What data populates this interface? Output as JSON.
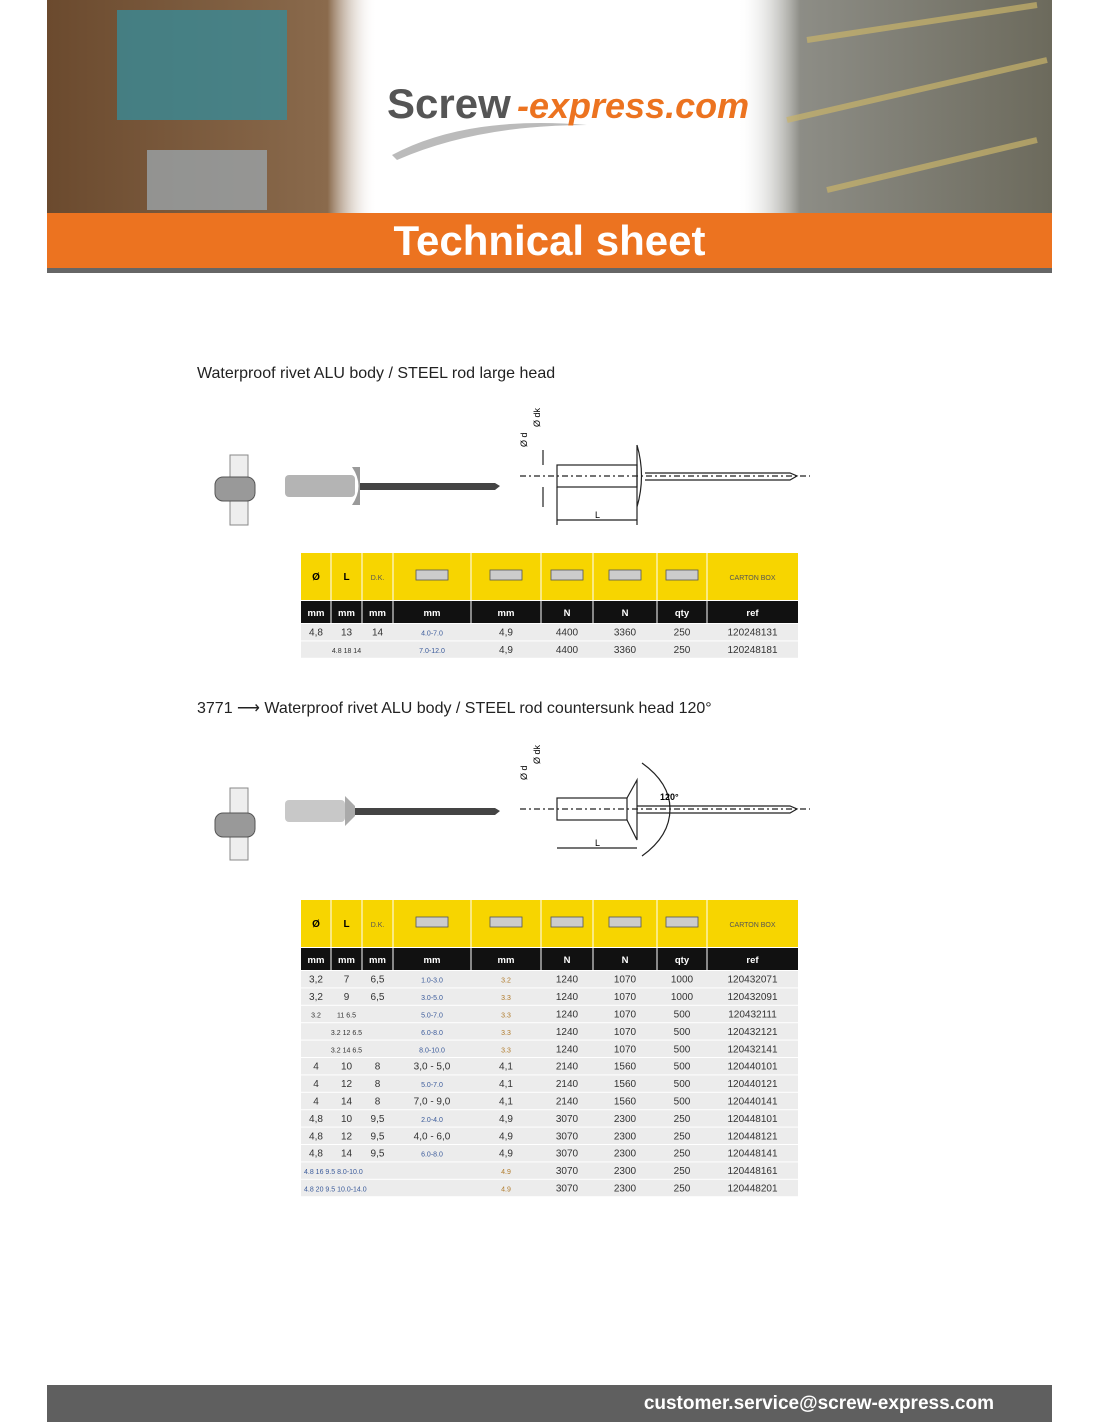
{
  "header": {
    "logo_main": "Screw",
    "logo_rest": "-express.com",
    "banner": "Technical sheet"
  },
  "sections": [
    {
      "title": "Waterproof rivet ALU body / STEEL rod large head",
      "diagram": {
        "d": "Ø d",
        "dk": "Ø dk",
        "length": "L"
      },
      "table": {
        "header": [
          "Ø",
          "L",
          "D.K.",
          "CARTON BOX"
        ],
        "units": [
          "mm",
          "mm",
          "mm",
          "mm",
          "mm",
          "N",
          "N",
          "qty",
          "ref"
        ],
        "rows": [
          [
            "4,8",
            "13",
            "14",
            "4.0-7.0",
            "4,9",
            "4400",
            "3360",
            "250",
            "120248131"
          ],
          [
            null,
            "4.8 18 14",
            null,
            "7.0-12.0",
            "4,9",
            "4400",
            "3360",
            "250",
            "120248181"
          ]
        ]
      }
    },
    {
      "title": "3771 ⟶ Waterproof rivet ALU body / STEEL rod countersunk head 120°",
      "diagram": {
        "d": "Ø d",
        "dk": "Ø dk",
        "length": "L",
        "angle": "120°"
      },
      "table": {
        "header": [
          "Ø",
          "L",
          "D.K.",
          "CARTON BOX"
        ],
        "units": [
          "mm",
          "mm",
          "mm",
          "mm",
          "mm",
          "N",
          "N",
          "qty",
          "ref"
        ],
        "rows": [
          [
            "3,2",
            "7",
            "6,5",
            "1.0-3.0",
            "3.2",
            "1240",
            "1070",
            "1000",
            "120432071"
          ],
          [
            "3,2",
            "9",
            "6,5",
            "3.0-5.0",
            "3.3",
            "1240",
            "1070",
            "1000",
            "120432091"
          ],
          [
            "3.2",
            "11 6.5",
            null,
            "5.0-7.0",
            "3.3",
            "1240",
            "1070",
            "500",
            "120432111"
          ],
          [
            null,
            "3.2 12 6.5",
            null,
            "6.0-8.0",
            "3.3",
            "1240",
            "1070",
            "500",
            "120432121"
          ],
          [
            null,
            "3.2 14 6.5",
            null,
            "8.0-10.0",
            "3.3",
            "1240",
            "1070",
            "500",
            "120432141"
          ],
          [
            "4",
            "10",
            "8",
            "3,0 - 5,0",
            "4,1",
            "2140",
            "1560",
            "500",
            "120440101"
          ],
          [
            "4",
            "12",
            "8",
            "5.0-7.0",
            "4,1",
            "2140",
            "1560",
            "500",
            "120440121"
          ],
          [
            "4",
            "14",
            "8",
            "7,0 - 9,0",
            "4,1",
            "2140",
            "1560",
            "500",
            "120440141"
          ],
          [
            "4,8",
            "10",
            "9,5",
            "2.0-4.0",
            "4,9",
            "3070",
            "2300",
            "250",
            "120448101"
          ],
          [
            "4,8",
            "12",
            "9,5",
            "4,0 - 6,0",
            "4,9",
            "3070",
            "2300",
            "250",
            "120448121"
          ],
          [
            "4,8",
            "14",
            "9,5",
            "6.0-8.0",
            "4,9",
            "3070",
            "2300",
            "250",
            "120448141"
          ],
          [
            "4.8 16 9.5 8.0-10.0",
            null,
            null,
            null,
            "4.9",
            "3070",
            "2300",
            "250",
            "120448161"
          ],
          [
            "4.8 20 9.5 10.0-14.0",
            null,
            null,
            null,
            "4.9",
            "3070",
            "2300",
            "250",
            "120448201"
          ]
        ]
      }
    }
  ],
  "footer": {
    "email": "customer.service@screw-express.com"
  }
}
